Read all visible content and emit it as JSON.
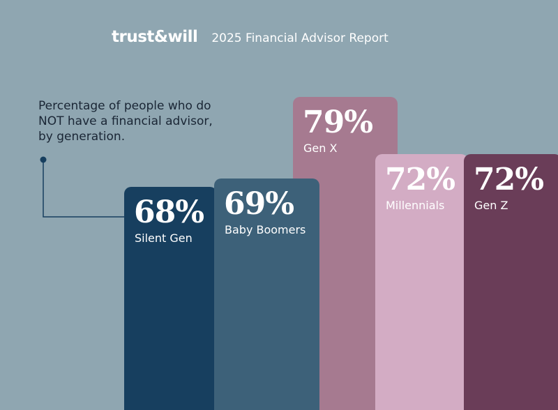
{
  "header": {
    "logo_text": "trust&will",
    "report_title": "2025 Financial Advisor Report"
  },
  "description": {
    "line1": "Percentage of people who do",
    "line2": "NOT have a financial advisor,",
    "line3": "by generation."
  },
  "colors": {
    "background": "#8fa6b1",
    "silent_gen": "#173f5f",
    "baby_boomers": "#3d6179",
    "gen_x": "#a67a90",
    "millennials": "#d3acc4",
    "gen_z": "#6a3d58"
  },
  "chart_data": {
    "type": "bar",
    "categories": [
      "Silent Gen",
      "Baby Boomers",
      "Gen X",
      "Millennials",
      "Gen Z"
    ],
    "values": [
      68,
      69,
      79,
      72,
      72
    ],
    "value_labels": [
      "68%",
      "69%",
      "79%",
      "72%",
      "72%"
    ],
    "unit": "%",
    "title": "Percentage of people who do NOT have a financial advisor, by generation.",
    "xlabel": "",
    "ylabel": "",
    "grid": false,
    "legend": "none"
  }
}
